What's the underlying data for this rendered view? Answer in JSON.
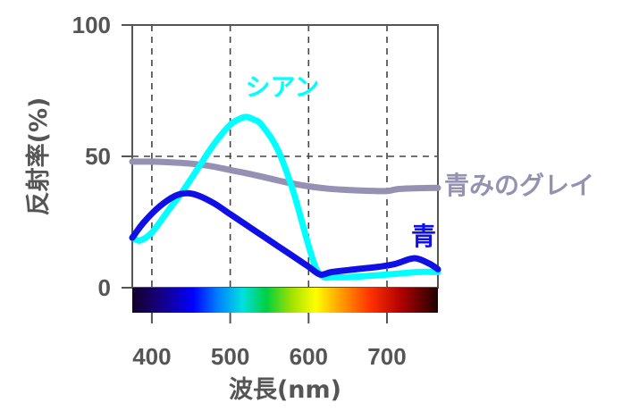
{
  "chart_data": {
    "type": "line",
    "xlabel": "波長(nm)",
    "ylabel": "反射率(%)",
    "xlim": [
      375,
      765
    ],
    "ylim": [
      0,
      100
    ],
    "x_ticks": [
      "400",
      "500",
      "600",
      "700"
    ],
    "x_tick_values": [
      400,
      500,
      600,
      700
    ],
    "y_ticks": [
      "0",
      "50",
      "100"
    ],
    "y_tick_values": [
      0,
      50,
      100
    ],
    "grid": "dashed",
    "spectrum_bar": true,
    "series": [
      {
        "name": "シアン",
        "color": "#00ffff",
        "x": [
          375,
          385,
          400,
          420,
          440,
          460,
          480,
          500,
          510,
          520,
          530,
          540,
          560,
          580,
          600,
          610,
          620,
          630,
          650,
          700,
          740,
          765
        ],
        "y": [
          19,
          18,
          21,
          29,
          37,
          46,
          55,
          62,
          64,
          65,
          64,
          62,
          53,
          37,
          16,
          7,
          4,
          4,
          4,
          5,
          6,
          6
        ]
      },
      {
        "name": "青",
        "color": "#1010e6",
        "x": [
          375,
          390,
          410,
          430,
          445,
          460,
          480,
          500,
          520,
          540,
          560,
          580,
          600,
          615,
          630,
          660,
          690,
          710,
          730,
          740,
          755,
          765
        ],
        "y": [
          19,
          25,
          31,
          35,
          36,
          35,
          32,
          28,
          24,
          20,
          16,
          12,
          8,
          5,
          6,
          7,
          8,
          9,
          11,
          11,
          9,
          7
        ]
      },
      {
        "name": "青みのグレイ",
        "color": "#9491b3",
        "x": [
          375,
          400,
          425,
          450,
          475,
          500,
          525,
          550,
          575,
          600,
          625,
          650,
          675,
          700,
          715,
          740,
          765
        ],
        "y": [
          48,
          48,
          47.7,
          47.2,
          46.3,
          44.8,
          43.3,
          41.6,
          39.9,
          38.6,
          37.7,
          37.2,
          36.9,
          36.8,
          37.6,
          37.9,
          38
        ]
      }
    ]
  }
}
